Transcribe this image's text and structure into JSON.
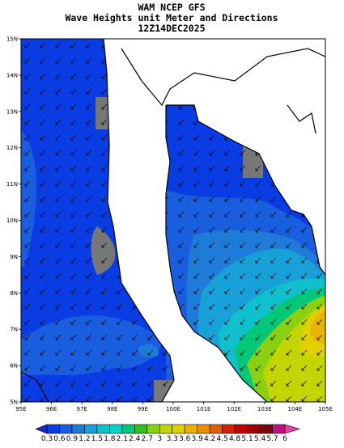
{
  "header": {
    "title_lines": [
      "WAM NCEP GFS",
      "Wave Heights unit Meter and Directions",
      "12Z14DEC2025"
    ]
  },
  "map": {
    "x_ticks": [
      "95E",
      "96E",
      "97E",
      "98E",
      "99E",
      "100E",
      "101E",
      "102E",
      "103E",
      "104E",
      "105E"
    ],
    "y_ticks": [
      "15N",
      "14N",
      "13N",
      "12N",
      "11N",
      "10N",
      "9N",
      "8N",
      "7N",
      "6N",
      "5N"
    ]
  },
  "colorbar": {
    "labels": [
      "0.3",
      "0.6",
      "0.9",
      "1.2",
      "1.5",
      "1.8",
      "2.1",
      "2.4",
      "2.7",
      "3",
      "3.3",
      "3.6",
      "3.9",
      "4.2",
      "4.5",
      "4.8",
      "5.1",
      "5.4",
      "5.7",
      "6"
    ],
    "colors": [
      "#2424c8",
      "#0a3ce4",
      "#1a5ee0",
      "#1e7cd8",
      "#18a0d8",
      "#10c0cc",
      "#00d4c8",
      "#00c878",
      "#30c020",
      "#88d010",
      "#c4d400",
      "#e0d000",
      "#e8b400",
      "#e89000",
      "#e06000",
      "#d82000",
      "#c00000",
      "#9c0000",
      "#7a0808",
      "#c01080",
      "#e040a8"
    ]
  }
}
